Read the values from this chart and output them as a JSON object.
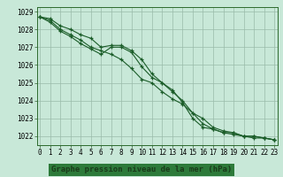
{
  "title": "Graphe pression niveau de la mer (hPa)",
  "x_hours": [
    0,
    1,
    2,
    3,
    4,
    5,
    6,
    7,
    8,
    9,
    10,
    11,
    12,
    13,
    14,
    15,
    16,
    17,
    18,
    19,
    20,
    21,
    22,
    23
  ],
  "series1": [
    1028.7,
    1028.6,
    1028.2,
    1028.0,
    1027.7,
    1027.5,
    1027.0,
    1027.1,
    1027.1,
    1026.8,
    1026.3,
    1025.5,
    1025.0,
    1024.5,
    1024.0,
    1023.3,
    1023.0,
    1022.5,
    1022.3,
    1022.2,
    1022.0,
    1022.0,
    1021.9,
    1021.8
  ],
  "series2": [
    1028.7,
    1028.5,
    1028.0,
    1027.7,
    1027.4,
    1027.0,
    1026.8,
    1026.6,
    1026.3,
    1025.8,
    1025.2,
    1025.0,
    1024.5,
    1024.1,
    1023.8,
    1023.3,
    1022.7,
    1022.4,
    1022.2,
    1022.2,
    1022.0,
    1022.0,
    1021.9,
    1021.8
  ],
  "series3": [
    1028.7,
    1028.4,
    1027.9,
    1027.6,
    1027.2,
    1026.9,
    1026.6,
    1027.0,
    1027.0,
    1026.7,
    1025.9,
    1025.3,
    1025.0,
    1024.6,
    1023.9,
    1023.0,
    1022.5,
    1022.4,
    1022.2,
    1022.1,
    1022.0,
    1021.9,
    1021.9,
    1021.8
  ],
  "ylim": [
    1021.5,
    1029.25
  ],
  "yticks": [
    1022,
    1023,
    1024,
    1025,
    1026,
    1027,
    1028,
    1029
  ],
  "bg_color": "#c8e8d8",
  "grid_color": "#99bbaa",
  "line_color": "#1a5c28",
  "footer_bg": "#2d7a3a",
  "footer_text_color": "#ffffff",
  "marker": "+",
  "title_fontsize": 6.5,
  "tick_fontsize": 5.5,
  "line_width": 0.8,
  "marker_size": 3.0
}
